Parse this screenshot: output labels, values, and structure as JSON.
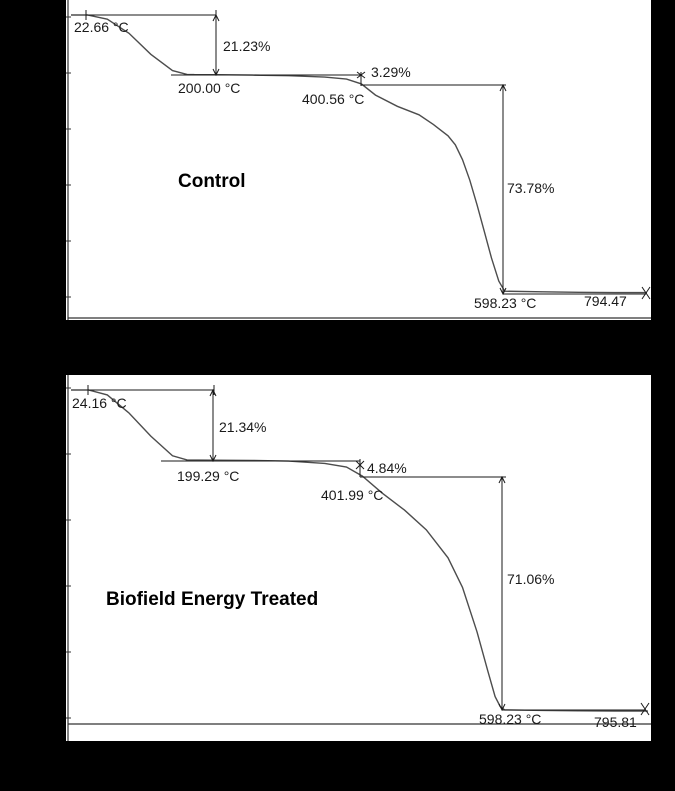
{
  "chart_data": [
    {
      "type": "line",
      "title": "Control",
      "xlabel": "",
      "ylabel": "",
      "grid": false,
      "xlim": [
        0,
        800
      ],
      "x_ticks_partial": [
        "200",
        "400",
        "600"
      ],
      "series": [
        {
          "x": [
            0,
            10,
            22.66,
            50,
            80,
            110,
            140,
            160,
            170,
            200,
            250,
            300,
            350,
            380,
            400.56,
            420,
            450,
            480,
            500,
            520,
            530,
            540,
            550,
            560,
            570,
            580,
            590,
            598.23,
            650,
            700,
            750,
            794.47
          ],
          "y": [
            100,
            100,
            100,
            98.5,
            93.5,
            86,
            80.2,
            78.85,
            78.8,
            78.77,
            78.6,
            78.4,
            77.9,
            77.2,
            75.48,
            71.5,
            67.5,
            64.5,
            61.0,
            57.0,
            53.8,
            48.5,
            41.2,
            32.5,
            23.0,
            13.5,
            5.3,
            1.7,
            1.5,
            1.3,
            1.2,
            1.2
          ]
        }
      ],
      "annotations": {
        "start_temp": "22.66 °C",
        "step1_loss": "21.23%",
        "step1_end": "200.00 °C",
        "step2_loss": "3.29%",
        "step2_end": "400.56 °C",
        "step3_loss": "73.78%",
        "step3_end": "598.23 °C",
        "final_temp": "794.47"
      }
    },
    {
      "type": "line",
      "title": "Biofield Energy Treated",
      "xlabel": "",
      "ylabel": "",
      "grid": false,
      "xlim": [
        0,
        800
      ],
      "x_ticks_partial": [
        "0",
        "200",
        "400",
        "600",
        "8"
      ],
      "series": [
        {
          "x": [
            0,
            10,
            24.16,
            50,
            80,
            110,
            140,
            160,
            175,
            199.29,
            250,
            300,
            350,
            380,
            401.99,
            430,
            460,
            490,
            520,
            540,
            560,
            575,
            585,
            592,
            598.23,
            650,
            700,
            750,
            795.81
          ],
          "y": [
            100,
            100,
            100,
            98.5,
            93.0,
            86.0,
            80.0,
            78.75,
            78.68,
            78.66,
            78.6,
            78.4,
            77.7,
            76.6,
            73.82,
            68.5,
            63.5,
            57.5,
            49.0,
            40.0,
            26.5,
            14.5,
            6.8,
            3.8,
            2.76,
            2.6,
            2.5,
            2.4,
            2.4
          ]
        }
      ],
      "annotations": {
        "start_temp": "24.16 °C",
        "step1_loss": "21.34%",
        "step1_end": "199.29 °C",
        "step2_loss": "4.84%",
        "step2_end": "401.99 °C",
        "step3_loss": "71.06%",
        "step3_end": "598.23 °C",
        "final_temp": "795.81"
      }
    }
  ],
  "colors": {
    "background": "#000000",
    "panel": "#ffffff",
    "curve": "#4d4d4d",
    "annotation_line": "#1a1a1a"
  }
}
